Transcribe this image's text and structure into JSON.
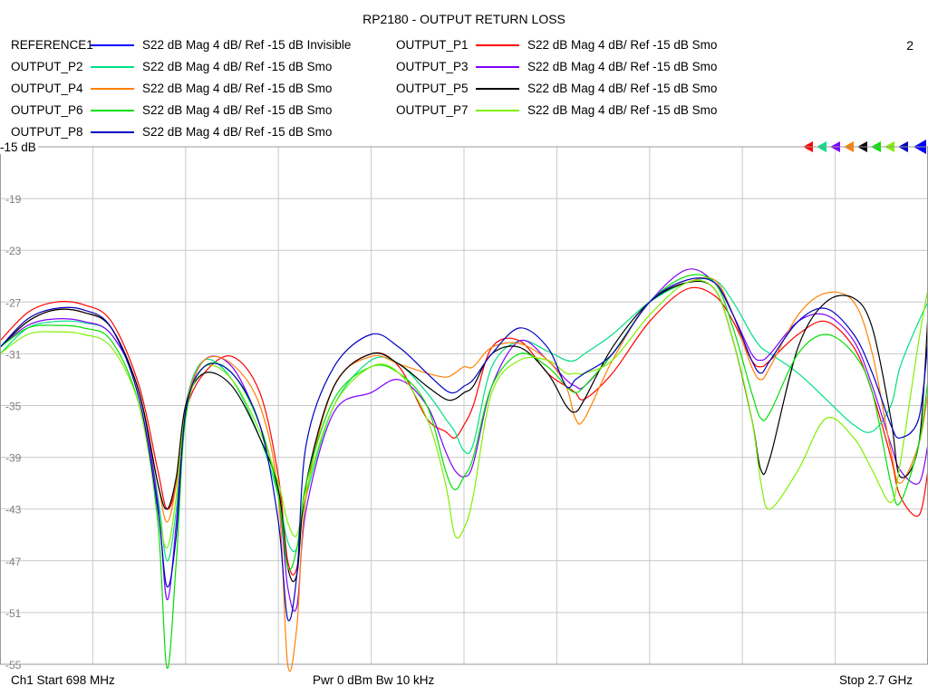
{
  "header": {
    "title": "RP2180 - OUTPUT RETURN LOSS",
    "channel_number": "2"
  },
  "ref_label": "-15 dB",
  "footer": {
    "start": "Ch1  Start  698 MHz",
    "power": "Pwr  0 dBm  Bw  10 kHz",
    "stop": "Stop  2.7 GHz"
  },
  "chart_data": {
    "type": "line",
    "title": "RP2180 - OUTPUT RETURN LOSS",
    "x_start_mhz": 698,
    "x_stop_mhz": 2700,
    "x_divisions": 10,
    "xlabel": "",
    "ylabel": "",
    "ylim": [
      -55,
      -15
    ],
    "y_ticks": [
      "-15",
      "-19",
      "-23",
      "-27",
      "-31",
      "-35",
      "-39",
      "-43",
      "-47",
      "-51",
      "-55"
    ],
    "grid": true,
    "x_frac": [
      0,
      0.03,
      0.06,
      0.09,
      0.12,
      0.15,
      0.17,
      0.18,
      0.19,
      0.2,
      0.22,
      0.25,
      0.28,
      0.3,
      0.31,
      0.32,
      0.33,
      0.36,
      0.4,
      0.43,
      0.46,
      0.48,
      0.49,
      0.5,
      0.51,
      0.53,
      0.56,
      0.59,
      0.61,
      0.62,
      0.63,
      0.66,
      0.7,
      0.74,
      0.77,
      0.79,
      0.81,
      0.82,
      0.83,
      0.86,
      0.89,
      0.92,
      0.94,
      0.96,
      0.97,
      0.99,
      1.0
    ],
    "series": [
      {
        "name": "REFERENCE1",
        "desc": "S22  dB Mag  4 dB/ Ref -15 dB  Invisible",
        "color": "#0000ff",
        "visible": false,
        "values": []
      },
      {
        "name": "OUTPUT_P1",
        "desc": "S22  dB Mag  4 dB/ Ref -15 dB  Smo",
        "color": "#ff0000",
        "visible": true,
        "values": [
          -30,
          -27.8,
          -27,
          -27.2,
          -28.5,
          -33.5,
          -40,
          -43,
          -41,
          -35.5,
          -32.5,
          -31.2,
          -34,
          -40.5,
          -47,
          -47.5,
          -41,
          -33.5,
          -31,
          -32,
          -36,
          -37,
          -37.5,
          -36.5,
          -35,
          -30.5,
          -30,
          -32.5,
          -33.5,
          -34,
          -34.5,
          -32.5,
          -28.5,
          -26,
          -26.5,
          -28.5,
          -31.5,
          -32,
          -31.5,
          -29.5,
          -28.5,
          -30.5,
          -34,
          -39,
          -42,
          -43.5,
          -40
        ]
      },
      {
        "name": "OUTPUT_P2",
        "desc": "S22  dB Mag  4 dB/ Ref -15 dB  Smo",
        "color": "#00e083",
        "visible": true,
        "values": [
          -31,
          -29,
          -28.5,
          -28.6,
          -29.5,
          -34,
          -42,
          -47,
          -43,
          -35,
          -31.5,
          -33,
          -37.5,
          -42,
          -45.5,
          -46,
          -42,
          -35,
          -31.5,
          -31.8,
          -34,
          -36,
          -37,
          -38.5,
          -38,
          -32,
          -30,
          -30.8,
          -31.5,
          -31.5,
          -31,
          -29.5,
          -27,
          -25.5,
          -25.3,
          -27,
          -29.5,
          -30.5,
          -31,
          -32.5,
          -34.5,
          -36.5,
          -37,
          -35,
          -32,
          -28.5,
          -27
        ]
      },
      {
        "name": "OUTPUT_P3",
        "desc": "S22  dB Mag  4 dB/ Ref -15 dB  Smo",
        "color": "#8000ff",
        "visible": true,
        "values": [
          -30.5,
          -28.8,
          -28.3,
          -28.5,
          -29.5,
          -34,
          -42.5,
          -50,
          -44,
          -35.5,
          -31.5,
          -32,
          -36.5,
          -42,
          -49,
          -50.5,
          -43,
          -35.5,
          -34,
          -33,
          -35,
          -38.5,
          -40,
          -40.5,
          -39.5,
          -33.5,
          -30,
          -31.5,
          -33,
          -33.5,
          -33.5,
          -31,
          -27,
          -24.5,
          -25.5,
          -28,
          -31,
          -31.5,
          -31,
          -28.5,
          -28,
          -30,
          -33.5,
          -38,
          -40,
          -41,
          -38
        ]
      },
      {
        "name": "OUTPUT_P4",
        "desc": "S22  dB Mag  4 dB/ Ref -15 dB  Smo",
        "color": "#ff8000",
        "visible": true,
        "values": [
          -30.5,
          -28.5,
          -27.6,
          -27.8,
          -29,
          -34,
          -41,
          -44,
          -41,
          -35,
          -31.5,
          -31.8,
          -35,
          -42,
          -55,
          -52,
          -42,
          -33.5,
          -31.2,
          -31.8,
          -32.5,
          -32.8,
          -32.5,
          -32,
          -32,
          -30.5,
          -30.2,
          -31.5,
          -33.5,
          -36,
          -36,
          -31.5,
          -27,
          -25.5,
          -25.3,
          -28,
          -32,
          -33,
          -32,
          -28,
          -26.3,
          -27,
          -31,
          -38.5,
          -41,
          -38,
          -34
        ]
      },
      {
        "name": "OUTPUT_P5",
        "desc": "S22  dB Mag  4 dB/ Ref -15 dB  Smo",
        "color": "#000000",
        "visible": true,
        "values": [
          -30.5,
          -28.5,
          -27.6,
          -27.8,
          -29,
          -34,
          -41,
          -43,
          -40.5,
          -35,
          -32.5,
          -33.5,
          -37.5,
          -41.5,
          -47.5,
          -48,
          -41,
          -33.5,
          -31,
          -31.8,
          -33.5,
          -34.5,
          -34.5,
          -34,
          -33.5,
          -31,
          -30.5,
          -32.5,
          -35,
          -35.5,
          -34.5,
          -30.5,
          -27,
          -25.5,
          -26,
          -30,
          -36,
          -40,
          -39,
          -30.5,
          -27,
          -26.7,
          -29,
          -36,
          -40.5,
          -38,
          -28
        ]
      },
      {
        "name": "OUTPUT_P6",
        "desc": "S22  dB Mag  4 dB/ Ref -15 dB  Smo",
        "color": "#00e000",
        "visible": true,
        "values": [
          -30.5,
          -29,
          -28.8,
          -29,
          -30,
          -35,
          -44,
          -56,
          -47,
          -36,
          -32,
          -32.5,
          -36.5,
          -42,
          -47.5,
          -46,
          -41,
          -34.5,
          -32,
          -32.5,
          -35,
          -40,
          -41.5,
          -40.5,
          -39,
          -33.5,
          -31,
          -32,
          -33.5,
          -34,
          -33.5,
          -31,
          -27,
          -25,
          -25.5,
          -29,
          -34,
          -36,
          -35.5,
          -31,
          -29.5,
          -31,
          -34,
          -41,
          -42.5,
          -38,
          -33
        ]
      },
      {
        "name": "OUTPUT_P7",
        "desc": "S22  dB Mag  4 dB/ Ref -15 dB  Smo",
        "color": "#80f000",
        "visible": true,
        "values": [
          -31,
          -29.5,
          -29.3,
          -29.5,
          -30.5,
          -35,
          -43,
          -46,
          -42,
          -35.5,
          -32,
          -33,
          -37,
          -41,
          -44,
          -45,
          -41.5,
          -35,
          -32,
          -32.5,
          -36,
          -41,
          -45,
          -44.5,
          -42,
          -34,
          -31.5,
          -31.5,
          -32.5,
          -32.5,
          -32.5,
          -31.5,
          -28,
          -25.5,
          -26,
          -30,
          -36,
          -41,
          -43,
          -40,
          -36,
          -37.5,
          -40,
          -42.5,
          -39.5,
          -30,
          -26
        ]
      },
      {
        "name": "OUTPUT_P8",
        "desc": "S22  dB Mag  4 dB/ Ref -15 dB  Smo",
        "color": "#0000c0",
        "visible": true,
        "values": [
          -30.5,
          -28.3,
          -27.5,
          -27.6,
          -29,
          -34.5,
          -43,
          -49,
          -45,
          -35.5,
          -32,
          -32.5,
          -36.5,
          -44,
          -51.5,
          -48,
          -38,
          -32,
          -29.5,
          -30.5,
          -32.5,
          -33.8,
          -34,
          -33.5,
          -33,
          -31,
          -29,
          -30.5,
          -33.5,
          -33,
          -32.5,
          -31,
          -27,
          -25.3,
          -25.5,
          -28,
          -31.5,
          -32.5,
          -31.5,
          -28.5,
          -27.5,
          -29.5,
          -32.5,
          -36.5,
          -37.5,
          -36,
          -30
        ]
      }
    ]
  }
}
